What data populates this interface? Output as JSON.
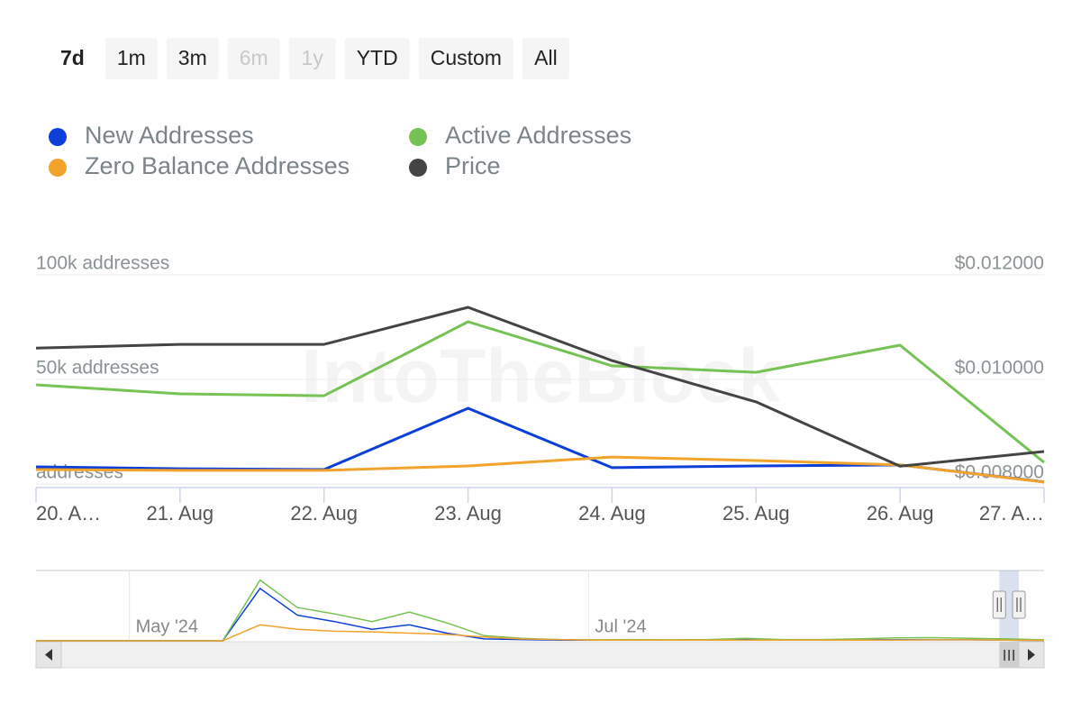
{
  "range_selector": {
    "buttons": [
      "7d",
      "1m",
      "3m",
      "6m",
      "1y",
      "YTD",
      "Custom",
      "All"
    ],
    "selected": 0,
    "disabled": [
      3,
      4
    ]
  },
  "chart_data": [
    {
      "type": "line",
      "watermark": "IntoTheBlock",
      "categories": [
        "20. A…",
        "21. Aug",
        "22. Aug",
        "23. Aug",
        "24. Aug",
        "25. Aug",
        "26. Aug",
        "27. A…"
      ],
      "series": [
        {
          "name": "New Addresses",
          "color": "#0b3fd8",
          "values": [
            8200,
            7300,
            6900,
            36200,
            7800,
            8600,
            9100,
            1000
          ]
        },
        {
          "name": "Active Addresses",
          "color": "#76c255",
          "values": [
            47400,
            43100,
            42200,
            77600,
            56500,
            53400,
            66400,
            10300
          ]
        },
        {
          "name": "Zero Balance Addresses",
          "color": "#f2a32b",
          "values": [
            6900,
            6500,
            6500,
            8600,
            12900,
            11200,
            9100,
            900
          ]
        },
        {
          "name": "Price",
          "color": "#444444",
          "axis": "y2",
          "values": [
            0.0106,
            0.01067,
            0.01067,
            0.01138,
            0.01036,
            0.00957,
            0.00834,
            0.00862
          ]
        }
      ],
      "ylim": [
        0,
        100000
      ],
      "yticks": [
        {
          "value": 0,
          "label": "addresses"
        },
        {
          "value": 50000,
          "label": "50k addresses"
        },
        {
          "value": 100000,
          "label": "100k addresses"
        }
      ],
      "y2lim": [
        0.008,
        0.012
      ],
      "y2ticks": [
        {
          "value": 0.008,
          "label": "$0.008000"
        },
        {
          "value": 0.01,
          "label": "$0.010000"
        },
        {
          "value": 0.012,
          "label": "$0.012000"
        }
      ],
      "grid": true
    },
    {
      "type": "navigator",
      "x": [
        0,
        1,
        2,
        3,
        4,
        5,
        6,
        7,
        8,
        9,
        10,
        11,
        12,
        13,
        14,
        15,
        16,
        17,
        18,
        19,
        20,
        21,
        22,
        23,
        24,
        25,
        26,
        27
      ],
      "series": [
        {
          "name": "New Addresses",
          "color": "#0b3fd8",
          "values": [
            0,
            0,
            0,
            0,
            0,
            0,
            82000,
            40000,
            30000,
            18000,
            25000,
            12000,
            3000,
            2000,
            1000,
            1000,
            1000,
            1000,
            1000,
            2000,
            1000,
            1000,
            1500,
            1500,
            1500,
            1500,
            1000,
            500
          ]
        },
        {
          "name": "Active Addresses",
          "color": "#76c255",
          "values": [
            0,
            0,
            0,
            0,
            0,
            0,
            95000,
            52000,
            42000,
            30000,
            45000,
            28000,
            8000,
            4000,
            2000,
            1500,
            2000,
            1500,
            2000,
            4000,
            2000,
            2000,
            3000,
            4500,
            5000,
            4000,
            3000,
            1500
          ]
        },
        {
          "name": "Zero Balance Addresses",
          "color": "#f2a32b",
          "values": [
            0,
            0,
            0,
            0,
            0,
            0,
            25000,
            18000,
            15000,
            14000,
            12000,
            10000,
            6000,
            3000,
            2000,
            1000,
            1000,
            1000,
            1000,
            1000,
            1000,
            1000,
            1000,
            1000,
            1500,
            1500,
            1000,
            500
          ]
        }
      ],
      "xlim": [
        0,
        27
      ],
      "xticks": [
        {
          "value": 2.5,
          "label": "May '24"
        },
        {
          "value": 14.8,
          "label": "Jul '24"
        }
      ],
      "ylim": [
        0,
        110000
      ],
      "selection": [
        25.8,
        27
      ]
    }
  ]
}
